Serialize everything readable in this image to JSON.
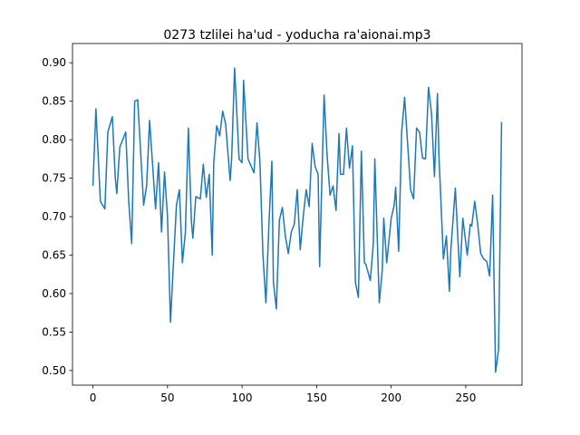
{
  "chart_data": {
    "type": "line",
    "title": "0273 tzlilei ha'ud - yoducha ra'aionai.mp3",
    "x": [
      0,
      2,
      5,
      8,
      10,
      13,
      15,
      16,
      18,
      22,
      24,
      26,
      28,
      30,
      34,
      36,
      38,
      42,
      44,
      46,
      48,
      50,
      52,
      54,
      56,
      58,
      60,
      62,
      64,
      66,
      67,
      69,
      72,
      74,
      76,
      78,
      80,
      81,
      83,
      85,
      87,
      89,
      92,
      93,
      95,
      98,
      100,
      101,
      104,
      108,
      110,
      112,
      114,
      116,
      118,
      120,
      121,
      123,
      125,
      127,
      129,
      131,
      133,
      135,
      137,
      139,
      141,
      143,
      145,
      147,
      149,
      151,
      152,
      155,
      157,
      159,
      161,
      163,
      165,
      166,
      168,
      170,
      172,
      174,
      176,
      178,
      180,
      182,
      183,
      186,
      188,
      189,
      192,
      194,
      195,
      197,
      200,
      202,
      203,
      205,
      207,
      209,
      211,
      213,
      215,
      217,
      219,
      221,
      223,
      225,
      227,
      229,
      231,
      232,
      235,
      237,
      239,
      240,
      243,
      245,
      246,
      248,
      251,
      253,
      254,
      256,
      258,
      260,
      262,
      264,
      266,
      268,
      270,
      272,
      274
    ],
    "series": [
      {
        "color": "#1f77b4",
        "values": [
          0.74,
          0.84,
          0.72,
          0.71,
          0.81,
          0.83,
          0.75,
          0.73,
          0.79,
          0.81,
          0.72,
          0.665,
          0.85,
          0.852,
          0.715,
          0.74,
          0.825,
          0.71,
          0.77,
          0.68,
          0.758,
          0.7,
          0.563,
          0.64,
          0.715,
          0.735,
          0.64,
          0.68,
          0.815,
          0.695,
          0.672,
          0.726,
          0.723,
          0.768,
          0.725,
          0.755,
          0.65,
          0.77,
          0.818,
          0.805,
          0.837,
          0.82,
          0.747,
          0.775,
          0.893,
          0.775,
          0.77,
          0.877,
          0.775,
          0.757,
          0.822,
          0.77,
          0.65,
          0.588,
          0.69,
          0.772,
          0.615,
          0.58,
          0.695,
          0.712,
          0.675,
          0.652,
          0.68,
          0.69,
          0.735,
          0.657,
          0.7,
          0.735,
          0.713,
          0.795,
          0.765,
          0.755,
          0.635,
          0.858,
          0.78,
          0.728,
          0.74,
          0.708,
          0.808,
          0.755,
          0.755,
          0.815,
          0.763,
          0.792,
          0.615,
          0.595,
          0.785,
          0.64,
          0.638,
          0.617,
          0.665,
          0.775,
          0.588,
          0.63,
          0.698,
          0.64,
          0.698,
          0.715,
          0.738,
          0.655,
          0.81,
          0.855,
          0.795,
          0.735,
          0.723,
          0.815,
          0.81,
          0.776,
          0.775,
          0.868,
          0.835,
          0.752,
          0.86,
          0.78,
          0.645,
          0.675,
          0.603,
          0.657,
          0.737,
          0.66,
          0.622,
          0.698,
          0.65,
          0.69,
          0.688,
          0.72,
          0.69,
          0.652,
          0.645,
          0.642,
          0.623,
          0.728,
          0.498,
          0.527,
          0.823
        ]
      }
    ],
    "xlim": [
      -13.7,
      287.7
    ],
    "ylim": [
      0.481,
      0.925
    ],
    "xticks": [
      0,
      50,
      100,
      150,
      200,
      250
    ],
    "yticks": [
      {
        "value": 0.5,
        "label": "0.50"
      },
      {
        "value": 0.55,
        "label": "0.55"
      },
      {
        "value": 0.6,
        "label": "0.60"
      },
      {
        "value": 0.65,
        "label": "0.65"
      },
      {
        "value": 0.7,
        "label": "0.70"
      },
      {
        "value": 0.75,
        "label": "0.75"
      },
      {
        "value": 0.8,
        "label": "0.80"
      },
      {
        "value": 0.85,
        "label": "0.85"
      },
      {
        "value": 0.9,
        "label": "0.90"
      }
    ]
  }
}
